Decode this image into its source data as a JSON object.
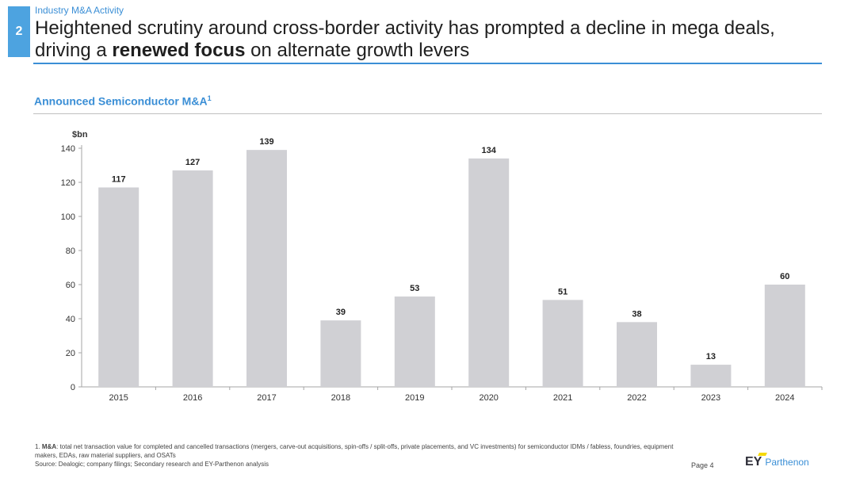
{
  "header": {
    "section_number": "2",
    "kicker": "Industry M&A Activity",
    "headline_part1": "Heightened scrutiny around cross-border activity has prompted a decline in mega deals, driving a ",
    "headline_bold": "renewed focus",
    "headline_part2": " on alternate growth levers"
  },
  "chart_title": "Announced Semiconductor M&A",
  "chart_title_note": "1",
  "chart_data": {
    "type": "bar",
    "title": "Announced Semiconductor M&A",
    "unit_label": "$bn",
    "categories": [
      "2015",
      "2016",
      "2017",
      "2018",
      "2019",
      "2020",
      "2021",
      "2022",
      "2023",
      "2024"
    ],
    "values": [
      117,
      127,
      139,
      39,
      53,
      134,
      51,
      38,
      13,
      60
    ],
    "ylim": [
      0,
      140
    ],
    "yticks": [
      0,
      20,
      40,
      60,
      80,
      100,
      120,
      140
    ],
    "xlabel": "",
    "ylabel": "$bn",
    "grid": false,
    "bar_color": "#d0d0d4"
  },
  "footnotes": {
    "note_number": "1.",
    "note_term": "M&A",
    "note_text": ": total net transaction value for completed and cancelled transactions (mergers, carve-out acquisitions, spin-offs / split-offs, private placements, and VC investments) for semiconductor IDMs / fabless, foundries, equipment makers, EDAs, raw material suppliers, and OSATs",
    "source": "Source: Dealogic; company filings; Secondary research and EY-Parthenon analysis"
  },
  "footer": {
    "page_label": "Page 4",
    "logo_ey": "EY",
    "logo_parthenon": "Parthenon"
  }
}
